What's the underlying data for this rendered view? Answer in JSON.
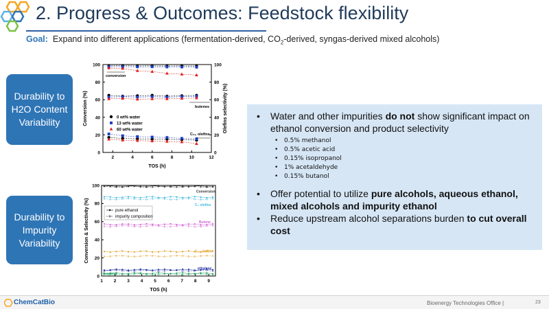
{
  "slide": {
    "title": "2. Progress & Outcomes: Feedstock flexibility",
    "goal_label": "Goal:",
    "goal_text_pre": "Expand into different applications (fermentation-derived, CO",
    "goal_sub": "2",
    "goal_text_post": "-derived, syngas-derived mixed alcohols)"
  },
  "side_boxes": [
    {
      "label": "Durability to H2O Content Variability"
    },
    {
      "label": "Durability to Impurity Variability"
    }
  ],
  "bullets": {
    "b1_pre": "Water and other impurities ",
    "b1_bold": "do not",
    "b1_post": " show significant impact on ethanol conversion and product selectivity",
    "impurities": [
      "0.5% methanol",
      "0.5% acetic acid",
      "0.15% isopropanol",
      "1% acetaldehyde",
      "0.15% butanol"
    ],
    "b2_pre": "Offer potential to utilize ",
    "b2_bold": "pure alcohols, aqueous ethanol, mixed alcohols and impurity ethanol",
    "b3_pre": "Reduce upstream alcohol separations burden ",
    "b3_bold": "to cut overall cost"
  },
  "footer": {
    "logo": "ChemCatBio",
    "office": "Bioenergy Technologies Office |",
    "page": "23"
  },
  "colors": {
    "accent": "#2e75b6",
    "title": "#1f3a5a",
    "box_bg": "#d6e6f5"
  },
  "chart_data": [
    {
      "type": "scatter",
      "xlabel": "TOS (h)",
      "ylabel": "Conversion (%)",
      "y2label": "Olefins selectivity (%)",
      "xlim": [
        1,
        12
      ],
      "ylim": [
        0,
        100
      ],
      "y2lim": [
        0,
        100
      ],
      "xticks": [
        2,
        4,
        6,
        8,
        10,
        12
      ],
      "yticks": [
        0,
        20,
        40,
        60,
        80,
        100
      ],
      "annotations": [
        "conversion",
        "butenes",
        "C₃₊ olefins"
      ],
      "legend_placement": "center-left",
      "series": [
        {
          "name": "0 wt% water",
          "marker": "circle",
          "color": "#000000",
          "conversion": [
            [
              1.6,
              98.5
            ],
            [
              3,
              98.8
            ],
            [
              4.5,
              98.5
            ],
            [
              6,
              98.6
            ],
            [
              7.5,
              98.4
            ],
            [
              9,
              98.5
            ],
            [
              10.5,
              98.3
            ]
          ],
          "butenes": [
            [
              1.6,
              65
            ],
            [
              3,
              64
            ],
            [
              4.5,
              64.5
            ],
            [
              6,
              65
            ],
            [
              7.5,
              64
            ],
            [
              9,
              64.5
            ],
            [
              10.5,
              65
            ]
          ],
          "c3_olefins": [
            [
              1.6,
              17
            ],
            [
              3,
              16
            ],
            [
              4.5,
              15.5
            ],
            [
              6,
              15
            ],
            [
              7.5,
              15
            ],
            [
              9,
              14.5
            ],
            [
              10.5,
              14
            ]
          ]
        },
        {
          "name": "13 wt% water",
          "marker": "square",
          "color": "#1f3fbf",
          "conversion": [
            [
              1.6,
              97.5
            ],
            [
              3,
              97.6
            ],
            [
              4.5,
              97.4
            ],
            [
              6,
              97.5
            ],
            [
              7.5,
              97.3
            ],
            [
              9,
              97.2
            ],
            [
              10.5,
              97
            ]
          ],
          "butenes": [
            [
              1.6,
              63
            ],
            [
              3,
              63.5
            ],
            [
              4.5,
              63
            ],
            [
              6,
              63.5
            ],
            [
              7.5,
              63
            ],
            [
              9,
              63.5
            ],
            [
              10.5,
              64
            ]
          ],
          "c3_olefins": [
            [
              1.6,
              21
            ],
            [
              3,
              19
            ],
            [
              4.5,
              18
            ],
            [
              6,
              17.5
            ],
            [
              7.5,
              17
            ],
            [
              9,
              16
            ],
            [
              10.5,
              15.5
            ]
          ]
        },
        {
          "name": "60 wt% water",
          "marker": "triangle",
          "color": "#e02020",
          "conversion": [
            [
              1.6,
              96
            ],
            [
              3,
              95.5
            ],
            [
              4.5,
              93
            ],
            [
              6,
              92
            ],
            [
              7.5,
              90
            ],
            [
              9,
              89
            ],
            [
              10.5,
              88
            ]
          ],
          "butenes": [
            [
              1.6,
              61
            ],
            [
              3,
              61.5
            ],
            [
              4.5,
              60.5
            ],
            [
              6,
              61
            ],
            [
              7.5,
              61
            ],
            [
              9,
              61.5
            ],
            [
              10.5,
              62
            ]
          ],
          "c3_olefins": [
            [
              1.6,
              15
            ],
            [
              3,
              14
            ],
            [
              4.5,
              13.5
            ],
            [
              6,
              13
            ],
            [
              7.5,
              12.5
            ],
            [
              9,
              12
            ],
            [
              10.5,
              10
            ]
          ]
        }
      ]
    },
    {
      "type": "scatter",
      "xlabel": "TOS (h)",
      "ylabel": "Conversion & Selectivity (%)",
      "xlim": [
        1,
        9.5
      ],
      "ylim": [
        0,
        100
      ],
      "xticks": [
        1,
        2,
        3,
        4,
        5,
        6,
        7,
        8,
        9
      ],
      "yticks": [
        0,
        20,
        40,
        60,
        80,
        100
      ],
      "legend_placement": "top-left",
      "legend": [
        "pure ethanol",
        "impurity composition"
      ],
      "labels": [
        "Conversion",
        "C₄ olefins",
        "Butene",
        "C₅₊ olefins",
        "ethylene",
        "Propene"
      ],
      "series": [
        {
          "name": "Conversion",
          "color": "#333333",
          "pure_y": 99,
          "impurity_y": 98.5
        },
        {
          "name": "C₄ olefins",
          "color": "#3fb8e0",
          "pure_y": 87,
          "impurity_y": 85
        },
        {
          "name": "Butene",
          "color": "#d35fd3",
          "pure_y": 57,
          "impurity_y": 55
        },
        {
          "name": "C₅₊ olefins",
          "color": "#e0a020",
          "pure_y": 27,
          "impurity_y": 22
        },
        {
          "name": "ethylene",
          "color": "#2030a0",
          "pure_y": 7,
          "impurity_y": 6
        },
        {
          "name": "Propene",
          "color": "#20a060",
          "pure_y": 3,
          "impurity_y": 2
        }
      ]
    }
  ]
}
